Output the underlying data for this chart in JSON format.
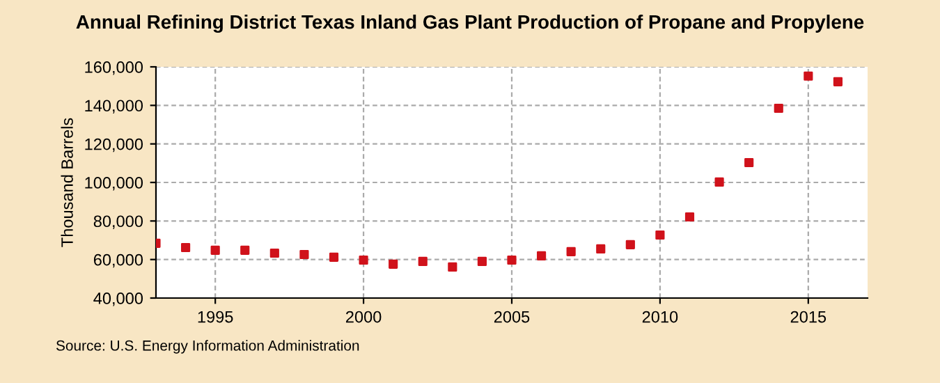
{
  "chart_data": {
    "type": "scatter",
    "title": "Annual Refining District Texas Inland Gas Plant Production of Propane and Propylene",
    "ylabel": "Thousand Barrels",
    "x": [
      1993,
      1994,
      1995,
      1996,
      1997,
      1998,
      1999,
      2000,
      2001,
      2002,
      2003,
      2004,
      2005,
      2006,
      2007,
      2008,
      2009,
      2010,
      2011,
      2012,
      2013,
      2014,
      2015,
      2016
    ],
    "series": [
      {
        "color": "#d0121b",
        "values": [
          68400,
          66200,
          64800,
          64800,
          63300,
          62600,
          61200,
          59700,
          57600,
          59000,
          56100,
          59000,
          59700,
          61900,
          64100,
          65500,
          67700,
          72700,
          82100,
          100200,
          110300,
          138500,
          155200,
          152300
        ]
      }
    ],
    "xlim": [
      1993,
      2017
    ],
    "xticks": [
      1995,
      2000,
      2005,
      2010,
      2015
    ],
    "ylim": [
      40000,
      160000
    ],
    "yticks": [
      {
        "value": 40000,
        "label": "40,000"
      },
      {
        "value": 60000,
        "label": "60,000"
      },
      {
        "value": 80000,
        "label": "80,000"
      },
      {
        "value": 100000,
        "label": "100,000"
      },
      {
        "value": 120000,
        "label": "120,000"
      },
      {
        "value": 140000,
        "label": "140,000"
      },
      {
        "value": 160000,
        "label": "160,000"
      }
    ],
    "grid": true,
    "marker": "square",
    "legend": false,
    "annotations": [
      "Source: U.S. Energy Information Administration"
    ]
  }
}
